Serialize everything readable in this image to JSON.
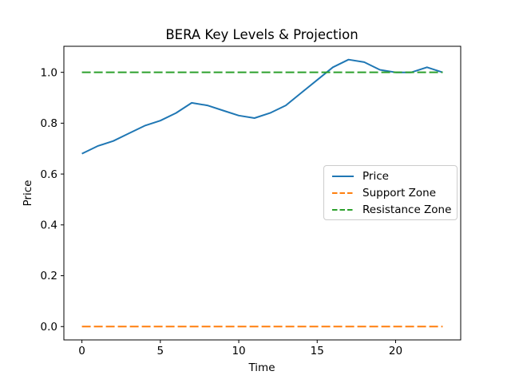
{
  "chart_data": {
    "type": "line",
    "title": "BERA Key Levels & Projection",
    "xlabel": "Time",
    "ylabel": "Price",
    "x": [
      0,
      1,
      2,
      3,
      4,
      5,
      6,
      7,
      8,
      9,
      10,
      11,
      12,
      13,
      14,
      15,
      16,
      17,
      18,
      19,
      20,
      21,
      22,
      23
    ],
    "series": [
      {
        "name": "Price",
        "color": "#1f77b4",
        "linestyle": "solid",
        "values": [
          0.68,
          0.71,
          0.73,
          0.76,
          0.79,
          0.81,
          0.84,
          0.88,
          0.87,
          0.85,
          0.83,
          0.82,
          0.84,
          0.87,
          0.92,
          0.97,
          1.02,
          1.05,
          1.04,
          1.01,
          1.0,
          1.0,
          1.02,
          1.0
        ]
      },
      {
        "name": "Support Zone",
        "color": "#ff7f0e",
        "linestyle": "dashed",
        "constant": 0.0
      },
      {
        "name": "Resistance Zone",
        "color": "#2ca02c",
        "linestyle": "dashed",
        "constant": 1.0
      }
    ],
    "xlim": [
      -1.15,
      24.15
    ],
    "ylim": [
      -0.0525,
      1.1025
    ],
    "xticks": {
      "values": [
        0,
        5,
        10,
        15,
        20
      ],
      "labels": [
        "0",
        "5",
        "10",
        "15",
        "20"
      ]
    },
    "yticks": {
      "values": [
        0.0,
        0.2,
        0.4,
        0.6,
        0.8,
        1.0
      ],
      "labels": [
        "0.0",
        "0.2",
        "0.4",
        "0.6",
        "0.8",
        "1.0"
      ]
    },
    "legend_position": "center right",
    "grid": false,
    "background_color": "#ffffff",
    "spine_color": "#000000"
  }
}
